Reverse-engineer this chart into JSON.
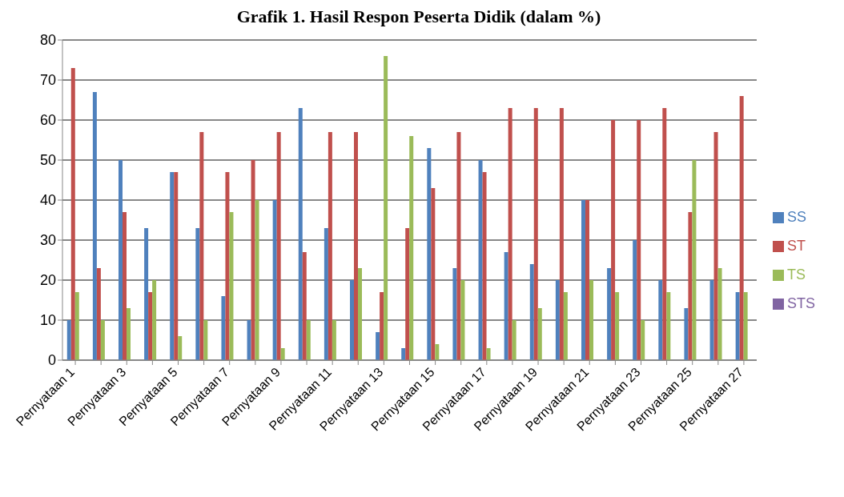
{
  "chart_data": {
    "type": "bar",
    "title": "Grafik 1. Hasil Respon Peserta Didik (dalam %)",
    "categories": [
      "Pernyataan 1",
      null,
      "Pernyataan 3",
      null,
      "Pernyataan 5",
      null,
      "Pernyataan 7",
      null,
      "Pernyataan 9",
      null,
      "Pernyataan 11",
      null,
      "Pernyataan 13",
      null,
      "Pernyataan 15",
      null,
      "Pernyataan 17",
      null,
      "Pernyataan 19",
      null,
      "Pernyataan 21",
      null,
      "Pernyataan 23",
      null,
      "Pernyataan 25",
      null,
      "Pernyataan 27"
    ],
    "series": [
      {
        "name": "SS",
        "color": "#4f81bd",
        "values": [
          10,
          67,
          50,
          33,
          47,
          33,
          16,
          10,
          40,
          63,
          33,
          20,
          7,
          3,
          53,
          23,
          50,
          27,
          24,
          20,
          40,
          23,
          30,
          20,
          13,
          20,
          17
        ]
      },
      {
        "name": "ST",
        "color": "#c0504d",
        "values": [
          73,
          23,
          37,
          17,
          47,
          57,
          47,
          50,
          57,
          27,
          57,
          57,
          17,
          33,
          43,
          57,
          47,
          63,
          63,
          63,
          40,
          60,
          60,
          63,
          37,
          57,
          66
        ]
      },
      {
        "name": "TS",
        "color": "#9bbb59",
        "values": [
          17,
          10,
          13,
          20,
          6,
          10,
          37,
          40,
          3,
          10,
          10,
          23,
          76,
          56,
          4,
          20,
          3,
          10,
          13,
          17,
          20,
          17,
          10,
          17,
          50,
          23,
          17
        ]
      },
      {
        "name": "STS",
        "color": "#8064a2",
        "values": [
          0,
          0,
          0,
          0,
          0,
          0,
          0,
          0,
          0,
          0,
          0,
          0,
          0,
          0,
          0,
          0,
          0,
          0,
          0,
          0,
          0,
          0,
          0,
          0,
          0,
          0,
          0
        ]
      }
    ],
    "ylim": [
      0,
      80
    ],
    "yticks": [
      0,
      10,
      20,
      30,
      40,
      50,
      60,
      70,
      80
    ],
    "grid": "y",
    "legend": "right"
  }
}
